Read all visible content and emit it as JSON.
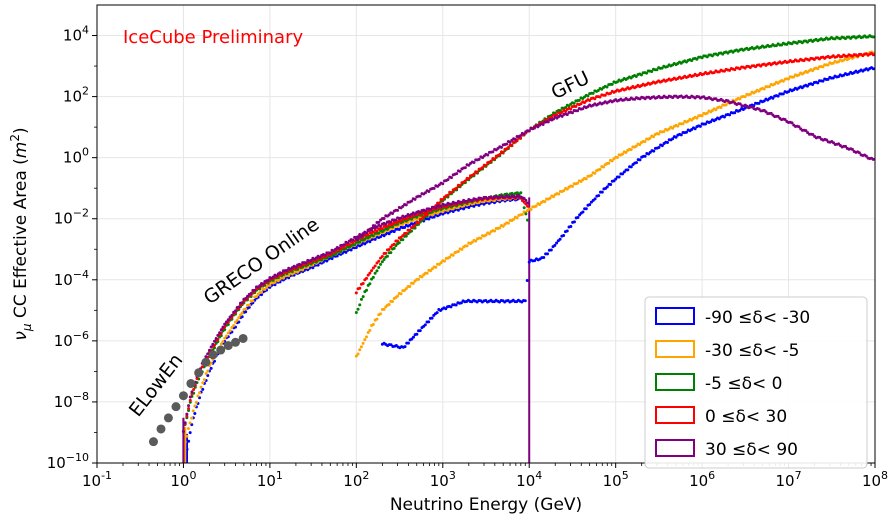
{
  "chart_data": {
    "type": "scatter",
    "title": "",
    "watermark": "IceCube Preliminary",
    "watermark_color": "#ff0000",
    "xlabel": "Neutrino Energy (GeV)",
    "ylabel_parts": [
      "ν",
      "μ",
      " CC Effective Area (",
      "m",
      "2",
      ")"
    ],
    "xscale": "log",
    "yscale": "log",
    "xlim": [
      0.1,
      100000000
    ],
    "ylim": [
      1e-10,
      100000
    ],
    "grid": true,
    "x_ticks": [
      {
        "value": 0.1,
        "base": "10",
        "exp": "-1"
      },
      {
        "value": 1,
        "base": "10",
        "exp": "0"
      },
      {
        "value": 10,
        "base": "10",
        "exp": "1"
      },
      {
        "value": 100,
        "base": "10",
        "exp": "2"
      },
      {
        "value": 1000,
        "base": "10",
        "exp": "3"
      },
      {
        "value": 10000,
        "base": "10",
        "exp": "4"
      },
      {
        "value": 100000,
        "base": "10",
        "exp": "5"
      },
      {
        "value": 1000000,
        "base": "10",
        "exp": "6"
      },
      {
        "value": 10000000,
        "base": "10",
        "exp": "7"
      },
      {
        "value": 100000000,
        "base": "10",
        "exp": "8"
      }
    ],
    "y_ticks": [
      {
        "value": 1e-10,
        "base": "10",
        "exp": "−10"
      },
      {
        "value": 1e-08,
        "base": "10",
        "exp": "−8"
      },
      {
        "value": 1e-06,
        "base": "10",
        "exp": "−6"
      },
      {
        "value": 0.0001,
        "base": "10",
        "exp": "−4"
      },
      {
        "value": 0.01,
        "base": "10",
        "exp": "−2"
      },
      {
        "value": 1,
        "base": "10",
        "exp": "0"
      },
      {
        "value": 100,
        "base": "10",
        "exp": "2"
      },
      {
        "value": 10000,
        "base": "10",
        "exp": "4"
      }
    ],
    "legend_position": "lower-right",
    "annotations": [
      {
        "text": "ELowEn",
        "x": 0.3,
        "y": 3e-09,
        "rotation": -52
      },
      {
        "text": "GRECO Online",
        "x": 2.0,
        "y": 1.5e-05,
        "rotation": -35
      },
      {
        "text": "GFU",
        "x": 20000,
        "y": 80,
        "rotation": -26
      }
    ],
    "elowen_series": {
      "color": "#5a5a5a",
      "x": [
        0.45,
        0.55,
        0.67,
        0.82,
        1.0,
        1.22,
        1.5,
        1.82,
        2.2,
        2.7,
        3.3,
        4.0,
        4.9
      ],
      "y": [
        5e-10,
        1.3e-09,
        3e-09,
        7e-09,
        1.6e-08,
        4e-08,
        9e-08,
        2e-07,
        3.5e-07,
        5e-07,
        7e-07,
        9e-07,
        1.2e-06
      ]
    },
    "series": [
      {
        "name": "-90  ≤δ<  -30",
        "color": "#0000ff",
        "greco_x": [
          1.1,
          1.3,
          1.6,
          2,
          2.5,
          3,
          4,
          5,
          7,
          10,
          15,
          20,
          30,
          50,
          100,
          150,
          200,
          300,
          500,
          1000,
          2000,
          3000,
          5000,
          8000
        ],
        "greco_y": [
          3e-10,
          3e-09,
          2e-08,
          1e-07,
          4e-07,
          1e-06,
          3e-06,
          8e-06,
          2.5e-05,
          6e-05,
          0.00011,
          0.00016,
          0.00025,
          0.0005,
          0.0012,
          0.002,
          0.0028,
          0.0045,
          0.0075,
          0.015,
          0.025,
          0.032,
          0.04,
          0.045
        ],
        "gfu_x": [
          100,
          200,
          350,
          900,
          1800,
          2500,
          9000,
          10000,
          14000,
          18000,
          25000,
          35000,
          50000,
          70000,
          100000,
          200000,
          500000,
          1000000,
          3000000,
          10000000,
          30000000,
          100000000
        ],
        "gfu_y": [
          null,
          8e-07,
          6e-07,
          1e-05,
          2e-05,
          2e-05,
          2e-05,
          0.0004,
          0.0005,
          0.001,
          0.003,
          0.01,
          0.03,
          0.08,
          0.2,
          1,
          5,
          12,
          40,
          150,
          400,
          900
        ]
      },
      {
        "name": "-30  ≤δ<  -5",
        "color": "#ffa500",
        "greco_x": [
          1.05,
          1.3,
          1.6,
          2,
          2.5,
          3,
          4,
          5,
          7,
          10,
          15,
          20,
          30,
          50,
          100,
          150,
          200,
          300,
          500,
          1000,
          2000,
          3000,
          5000,
          8000
        ],
        "greco_y": [
          5e-10,
          5e-09,
          3e-08,
          1.5e-07,
          5e-07,
          1.2e-06,
          4e-06,
          1e-05,
          3e-05,
          7e-05,
          0.00013,
          0.00018,
          0.0003,
          0.0006,
          0.0015,
          0.0025,
          0.0035,
          0.006,
          0.01,
          0.018,
          0.03,
          0.038,
          0.045,
          0.05
        ],
        "gfu_x": [
          100,
          150,
          200,
          300,
          500,
          1000,
          2000,
          5000,
          10000,
          20000,
          50000,
          100000,
          300000,
          1000000,
          3000000,
          10000000,
          30000000,
          100000000
        ],
        "gfu_y": [
          3e-07,
          3e-06,
          1e-05,
          3e-05,
          0.0001,
          0.0004,
          0.0015,
          0.006,
          0.02,
          0.06,
          0.25,
          1,
          6,
          25,
          100,
          400,
          1200,
          3000
        ]
      },
      {
        "name": "-5  ≤δ<  0",
        "color": "#008000",
        "greco_x": [
          1.0,
          1.2,
          1.5,
          2,
          2.5,
          3,
          4,
          5,
          7,
          10,
          15,
          20,
          30,
          50,
          100,
          150,
          200,
          300,
          500,
          1000,
          2000,
          3000,
          5000,
          8000,
          10000
        ],
        "greco_y": [
          1e-09,
          1e-08,
          6e-08,
          3e-07,
          1e-06,
          2.5e-06,
          8e-06,
          1.8e-05,
          4.5e-05,
          9e-05,
          0.00016,
          0.00022,
          0.00035,
          0.0006,
          0.0016,
          0.0028,
          0.004,
          0.007,
          0.012,
          0.022,
          0.035,
          0.045,
          0.06,
          0.07,
          0.005
        ],
        "gfu_x": [
          100,
          120,
          150,
          200,
          300,
          500,
          1000,
          2000,
          5000,
          10000,
          20000,
          50000,
          100000,
          300000,
          1000000,
          3000000,
          10000000,
          30000000,
          100000000
        ],
        "gfu_y": [
          8e-06,
          3e-05,
          0.0001,
          0.0004,
          0.0015,
          0.006,
          0.04,
          0.2,
          1.5,
          8,
          30,
          120,
          300,
          800,
          2000,
          3500,
          5500,
          8000,
          9500
        ]
      },
      {
        "name": "0  ≤δ<  30",
        "color": "#ff0000",
        "greco_x": [
          1.0,
          1.2,
          1.5,
          2,
          2.5,
          3,
          4,
          5,
          7,
          10,
          15,
          20,
          30,
          50,
          100,
          150,
          200,
          300,
          500,
          1000,
          2000,
          3000,
          5000,
          8000,
          10000
        ],
        "greco_y": [
          1e-09,
          1.2e-08,
          8e-08,
          4e-07,
          1.2e-06,
          3e-06,
          9e-06,
          2e-05,
          5e-05,
          0.0001,
          0.00018,
          0.00025,
          0.0004,
          0.0007,
          0.002,
          0.0035,
          0.005,
          0.008,
          0.014,
          0.025,
          0.038,
          0.045,
          0.05,
          0.05,
          0.02
        ],
        "gfu_x": [
          100,
          120,
          150,
          200,
          300,
          500,
          1000,
          2000,
          5000,
          10000,
          20000,
          50000,
          100000,
          300000,
          1000000,
          3000000,
          10000000,
          30000000,
          100000000
        ],
        "gfu_y": [
          4e-05,
          8e-05,
          0.0002,
          0.0006,
          0.002,
          0.007,
          0.045,
          0.22,
          1.6,
          8,
          25,
          80,
          150,
          300,
          550,
          900,
          1400,
          2000,
          2500
        ]
      },
      {
        "name": "30  ≤δ<  90",
        "color": "#800080",
        "greco_x": [
          1.0,
          1.2,
          1.5,
          2,
          2.5,
          3,
          4,
          5,
          7,
          10,
          15,
          20,
          30,
          50,
          100,
          150,
          200,
          300,
          500,
          1000,
          2000,
          3000,
          5000,
          8000,
          10000
        ],
        "greco_y": [
          1e-09,
          1.5e-08,
          1e-07,
          5e-07,
          1.5e-06,
          3.5e-06,
          1e-05,
          2.2e-05,
          5.5e-05,
          0.00011,
          0.0002,
          0.00028,
          0.00045,
          0.0008,
          0.0025,
          0.0045,
          0.0065,
          0.01,
          0.016,
          0.028,
          0.04,
          0.048,
          0.052,
          0.055,
          0.03
        ],
        "gfu_x": [
          100,
          150,
          200,
          300,
          500,
          1000,
          2000,
          5000,
          10000,
          20000,
          50000,
          100000,
          200000,
          500000,
          1000000,
          2000000,
          5000000,
          10000000,
          20000000,
          50000000,
          100000000
        ],
        "gfu_y": [
          0.002,
          0.005,
          0.01,
          0.02,
          0.05,
          0.15,
          0.6,
          2.5,
          8,
          20,
          50,
          75,
          90,
          100,
          95,
          70,
          35,
          15,
          5,
          2,
          0.8
        ]
      }
    ]
  }
}
